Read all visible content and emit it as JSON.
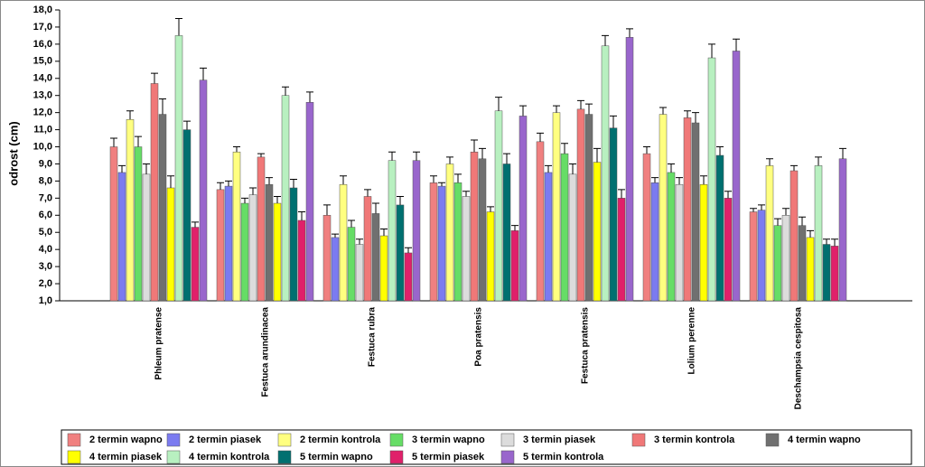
{
  "chart_data": {
    "type": "bar",
    "y_label": "odrost (cm)",
    "categories": [
      "Phleum pratense",
      "Festuca arundinacea",
      "Festuca rubra",
      "Poa pratensis",
      "Festuca pratensis",
      "Lolium perenne",
      "Deschampsia cespitosa"
    ],
    "series": [
      {
        "name": "2 termin wapno",
        "color": "#f08080",
        "values": [
          10.0,
          7.5,
          6.0,
          7.9,
          10.3,
          9.6,
          6.2
        ],
        "errors": [
          0.5,
          0.4,
          0.6,
          0.4,
          0.5,
          0.4,
          0.2
        ]
      },
      {
        "name": "2 termin piasek",
        "color": "#7b7bf0",
        "values": [
          8.5,
          7.7,
          4.7,
          7.7,
          8.5,
          7.9,
          6.3
        ],
        "errors": [
          0.4,
          0.3,
          0.2,
          0.2,
          0.4,
          0.3,
          0.3
        ]
      },
      {
        "name": "2 termin kontrola",
        "color": "#ffff80",
        "values": [
          11.6,
          9.7,
          7.8,
          9.0,
          12.0,
          11.9,
          8.9
        ],
        "errors": [
          0.5,
          0.3,
          0.5,
          0.4,
          0.4,
          0.4,
          0.4
        ]
      },
      {
        "name": "3 termin wapno",
        "color": "#66dd66",
        "values": [
          10.0,
          6.7,
          5.3,
          7.9,
          9.6,
          8.5,
          5.4
        ],
        "errors": [
          0.6,
          0.3,
          0.4,
          0.5,
          0.6,
          0.5,
          0.4
        ]
      },
      {
        "name": "3 termin piasek",
        "color": "#dcdcdc",
        "values": [
          8.4,
          7.2,
          4.3,
          7.1,
          8.4,
          7.8,
          6.0
        ],
        "errors": [
          0.6,
          0.4,
          0.3,
          0.3,
          0.6,
          0.4,
          0.4
        ]
      },
      {
        "name": "3 termin kontrola",
        "color": "#f07878",
        "values": [
          13.7,
          9.4,
          7.1,
          9.7,
          12.2,
          11.7,
          8.6
        ],
        "errors": [
          0.6,
          0.2,
          0.4,
          0.7,
          0.5,
          0.4,
          0.3
        ]
      },
      {
        "name": "4 termin wapno",
        "color": "#707070",
        "values": [
          11.9,
          7.8,
          6.1,
          9.3,
          11.9,
          11.4,
          5.4
        ],
        "errors": [
          0.9,
          0.4,
          0.6,
          0.6,
          0.6,
          0.6,
          0.5
        ]
      },
      {
        "name": "4 termin piasek",
        "color": "#ffff00",
        "values": [
          7.6,
          6.7,
          4.8,
          6.2,
          9.1,
          7.8,
          4.7
        ],
        "errors": [
          0.7,
          0.4,
          0.4,
          0.3,
          0.8,
          0.5,
          0.4
        ]
      },
      {
        "name": "4 termin kontrola",
        "color": "#b8f0c0",
        "values": [
          16.5,
          13.0,
          9.2,
          12.1,
          15.9,
          15.2,
          8.9
        ],
        "errors": [
          1.0,
          0.5,
          0.5,
          0.8,
          0.6,
          0.8,
          0.5
        ]
      },
      {
        "name": "5 termin wapno",
        "color": "#007070",
        "values": [
          11.0,
          7.6,
          6.6,
          9.0,
          11.1,
          9.5,
          4.3
        ],
        "errors": [
          0.5,
          0.5,
          0.5,
          0.6,
          0.7,
          0.5,
          0.3
        ]
      },
      {
        "name": "5 termin piasek",
        "color": "#e0206a",
        "values": [
          5.3,
          5.7,
          3.8,
          5.1,
          7.0,
          7.0,
          4.2
        ],
        "errors": [
          0.3,
          0.5,
          0.3,
          0.3,
          0.5,
          0.4,
          0.4
        ]
      },
      {
        "name": "5 termin kontrola",
        "color": "#9966cc",
        "values": [
          13.9,
          12.6,
          9.2,
          11.8,
          16.4,
          15.6,
          9.3
        ],
        "errors": [
          0.7,
          0.6,
          0.5,
          0.6,
          0.5,
          0.7,
          0.6
        ]
      }
    ],
    "ylim": [
      1.0,
      18.0
    ],
    "yticks": [
      {
        "value": 1,
        "label": "1,0"
      },
      {
        "value": 2,
        "label": "2,0"
      },
      {
        "value": 3,
        "label": "3,0"
      },
      {
        "value": 4,
        "label": "4,0"
      },
      {
        "value": 5,
        "label": "5,0"
      },
      {
        "value": 6,
        "label": "6,0"
      },
      {
        "value": 7,
        "label": "7,0"
      },
      {
        "value": 8,
        "label": "8,0"
      },
      {
        "value": 9,
        "label": "9,0"
      },
      {
        "value": 10,
        "label": "10,0"
      },
      {
        "value": 11,
        "label": "11,0"
      },
      {
        "value": 12,
        "label": "12,0"
      },
      {
        "value": 13,
        "label": "13,0"
      },
      {
        "value": 14,
        "label": "14,0"
      },
      {
        "value": 15,
        "label": "15,0"
      },
      {
        "value": 16,
        "label": "16,0"
      },
      {
        "value": 17,
        "label": "17,0"
      },
      {
        "value": 18,
        "label": "18,0"
      }
    ],
    "grid": false
  }
}
